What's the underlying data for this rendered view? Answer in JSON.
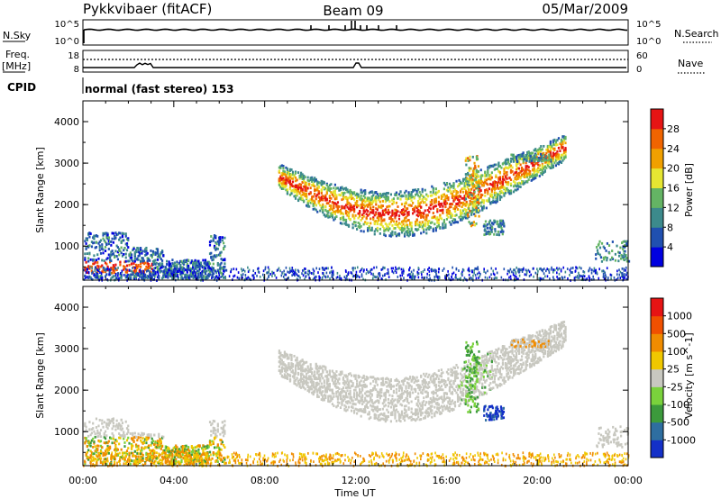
{
  "header": {
    "station": "Pykkvibaer (fitACF)",
    "beam": "Beam 09",
    "date": "05/Mar/2009"
  },
  "strip_labels": {
    "nsky": "N.Sky",
    "nsky_ticks": [
      "10^5",
      "10^0"
    ],
    "nsearch": "N.Search",
    "nsearch_ticks": [
      "10^5",
      "10^0"
    ],
    "freq_line1": "Freq.",
    "freq_line2": "[MHz]",
    "freq_ticks": [
      "18",
      "8"
    ],
    "nave": "Nave",
    "nave_ticks": [
      "60",
      "0"
    ],
    "cpid": "CPID",
    "cpid_text": "normal (fast stereo) 153"
  },
  "chart_data": [
    {
      "type": "heatmap",
      "name": "power",
      "ylabel": "Slant Range [km]",
      "xlabel": "Time UT",
      "y_ticks": [
        "1000",
        "2000",
        "3000",
        "4000"
      ],
      "ylim": [
        180,
        4500
      ],
      "x_ticks": [
        "00:00",
        "04:00",
        "08:00",
        "12:00",
        "16:00",
        "20:00",
        "00:00"
      ],
      "xlim": [
        0,
        24
      ],
      "colorbar": {
        "label": "Power [dB]",
        "ticks": [
          "4",
          "8",
          "12",
          "16",
          "20",
          "24",
          "28"
        ],
        "colors": [
          "#0000e0",
          "#2050b0",
          "#3c8a8c",
          "#64b464",
          "#e6e632",
          "#f0a000",
          "#f06400",
          "#e61414"
        ]
      }
    },
    {
      "type": "heatmap",
      "name": "velocity",
      "ylabel": "Slant Range [km]",
      "xlabel": "Time UT",
      "y_ticks": [
        "1000",
        "2000",
        "3000",
        "4000"
      ],
      "ylim": [
        180,
        4500
      ],
      "x_ticks": [
        "00:00",
        "04:00",
        "08:00",
        "12:00",
        "16:00",
        "20:00",
        "00:00"
      ],
      "xlim": [
        0,
        24
      ],
      "colorbar": {
        "label": "Velocity [m s^-1]",
        "ticks": [
          "1000",
          "500",
          "100",
          "25",
          "-25",
          "-100",
          "-500",
          "-1000"
        ],
        "colors": [
          "#1430c8",
          "#2e6ea0",
          "#3c9a3c",
          "#7ad23c",
          "#c8c8c0",
          "#f0c800",
          "#f08c00",
          "#f05000",
          "#e61414"
        ]
      }
    }
  ],
  "time_axis_label": "Time UT"
}
